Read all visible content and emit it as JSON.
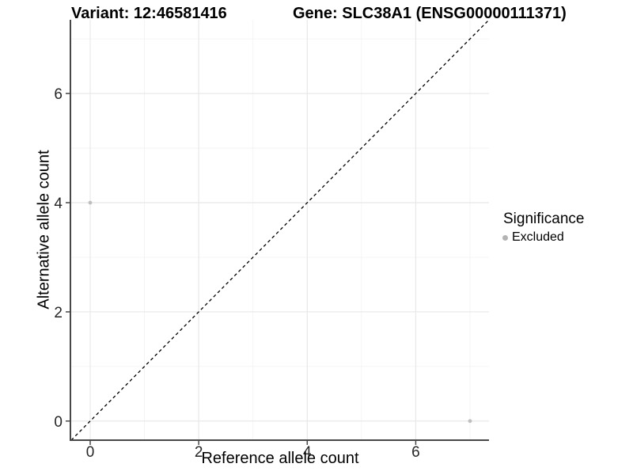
{
  "header": {
    "variant_title": "Variant: 12:46581416",
    "gene_title": "Gene: SLC38A1 (ENSG00000111371)"
  },
  "chart_data": {
    "type": "scatter",
    "title_left": "Variant: 12:46581416",
    "title_right": "Gene: SLC38A1 (ENSG00000111371)",
    "xlabel": "Reference allele count",
    "ylabel": "Alternative allele count",
    "xlim": [
      -0.35,
      7.35
    ],
    "ylim": [
      -0.35,
      7.35
    ],
    "x_ticks": [
      0,
      2,
      4,
      6
    ],
    "y_ticks": [
      0,
      2,
      4,
      6
    ],
    "x_minor_ticks": [
      1,
      3,
      5,
      7
    ],
    "y_minor_ticks": [
      1,
      3,
      5,
      7
    ],
    "grid": "major+minor",
    "points": [
      {
        "x": 0,
        "y": 4,
        "series": "Excluded"
      },
      {
        "x": 7,
        "y": 0,
        "series": "Excluded"
      }
    ],
    "identity_line": {
      "style": "dashed",
      "from": [
        -0.35,
        -0.35
      ],
      "to": [
        7.35,
        7.35
      ],
      "color": "#000000"
    },
    "legend": {
      "title": "Significance",
      "position": "right",
      "entries": [
        {
          "label": "Excluded",
          "color": "#b3b3b3"
        }
      ]
    },
    "style": {
      "point_color": "#bebebe",
      "grid_major_color": "#e8e8e8",
      "grid_minor_color": "#f1f1f1",
      "axis_line_color": "#474747",
      "tick_color": "#474747",
      "tick_label_color": "#262626",
      "background": "#ffffff"
    }
  }
}
